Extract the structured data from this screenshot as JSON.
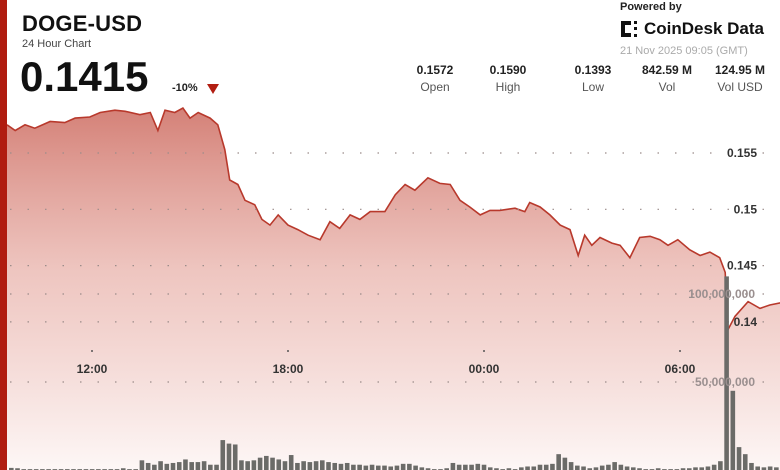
{
  "header": {
    "symbol": "DOGE-USD",
    "subtitle": "24 Hour Chart",
    "price": "0.1415",
    "change": "-10%",
    "change_direction_icon": "triangle-down-icon",
    "powered_by": "Powered by",
    "brand": "CoinDesk Data",
    "timestamp": "21 Nov 2025 09:05 (GMT)"
  },
  "stats": [
    {
      "value": "0.1572",
      "label": "Open"
    },
    {
      "value": "0.1590",
      "label": "High"
    },
    {
      "value": "0.1393",
      "label": "Low"
    },
    {
      "value": "842.59 M",
      "label": "Vol"
    },
    {
      "value": "124.95 M",
      "label": "Vol USD"
    }
  ],
  "colors": {
    "accent": "#b01c10",
    "line": "#b8392c",
    "volume": "#6b6b68",
    "fill_top": "#d98a80"
  },
  "chart_data": [
    {
      "type": "area",
      "series": [
        {
          "values_format": "time,price"
        }
      ],
      "x_ticks": [
        "12:00",
        "18:00",
        "00:00",
        "06:00"
      ],
      "y_ticks": [
        "0.155",
        "0.15",
        "0.145",
        "0.14"
      ],
      "y_tick_values": [
        0.155,
        0.15,
        0.145,
        0.14
      ],
      "ylim": [
        0.1335,
        0.1605
      ],
      "grid": true,
      "points": [
        [
          "09:26",
          0.1575
        ],
        [
          "09:39",
          0.157
        ],
        [
          "09:57",
          0.1575
        ],
        [
          "10:15",
          0.1572
        ],
        [
          "10:43",
          0.1578
        ],
        [
          "11:10",
          0.1577
        ],
        [
          "11:29",
          0.1581
        ],
        [
          "11:56",
          0.1582
        ],
        [
          "12:15",
          0.1586
        ],
        [
          "12:42",
          0.1588
        ],
        [
          "13:01",
          0.1587
        ],
        [
          "13:28",
          0.1584
        ],
        [
          "13:47",
          0.1586
        ],
        [
          "14:01",
          0.157
        ],
        [
          "14:14",
          0.1588
        ],
        [
          "14:32",
          0.1586
        ],
        [
          "14:47",
          0.159
        ],
        [
          "15:00",
          0.1581
        ],
        [
          "15:15",
          0.1586
        ],
        [
          "15:37",
          0.1581
        ],
        [
          "15:51",
          0.1575
        ],
        [
          "16:04",
          0.1553
        ],
        [
          "16:13",
          0.1526
        ],
        [
          "16:28",
          0.1522
        ],
        [
          "16:41",
          0.1508
        ],
        [
          "16:59",
          0.1504
        ],
        [
          "17:12",
          0.1491
        ],
        [
          "17:27",
          0.1486
        ],
        [
          "17:42",
          0.1495
        ],
        [
          "18:00",
          0.1486
        ],
        [
          "18:18",
          0.1482
        ],
        [
          "18:37",
          0.1477
        ],
        [
          "18:59",
          0.1473
        ],
        [
          "19:17",
          0.1489
        ],
        [
          "19:35",
          0.1483
        ],
        [
          "19:54",
          0.1495
        ],
        [
          "20:12",
          0.1491
        ],
        [
          "20:31",
          0.1498
        ],
        [
          "20:58",
          0.1498
        ],
        [
          "21:17",
          0.1513
        ],
        [
          "21:35",
          0.1522
        ],
        [
          "21:53",
          0.1517
        ],
        [
          "22:17",
          0.1528
        ],
        [
          "22:39",
          0.1523
        ],
        [
          "22:58",
          0.1522
        ],
        [
          "23:16",
          0.1508
        ],
        [
          "23:34",
          0.1502
        ],
        [
          "23:53",
          0.1495
        ],
        [
          "00:11",
          0.1499
        ],
        [
          "00:29",
          0.1499
        ],
        [
          "00:57",
          0.1501
        ],
        [
          "01:15",
          0.1498
        ],
        [
          "01:24",
          0.1506
        ],
        [
          "01:43",
          0.1502
        ],
        [
          "02:01",
          0.1495
        ],
        [
          "02:20",
          0.1486
        ],
        [
          "02:38",
          0.1482
        ],
        [
          "02:53",
          0.1459
        ],
        [
          "03:05",
          0.1477
        ],
        [
          "03:18",
          0.1468
        ],
        [
          "03:33",
          0.1475
        ],
        [
          "03:55",
          0.147
        ],
        [
          "04:10",
          0.1468
        ],
        [
          "04:28",
          0.1457
        ],
        [
          "04:46",
          0.1475
        ],
        [
          "05:05",
          0.1476
        ],
        [
          "05:23",
          0.1473
        ],
        [
          "05:38",
          0.1468
        ],
        [
          "05:56",
          0.1473
        ],
        [
          "06:18",
          0.1464
        ],
        [
          "06:37",
          0.1459
        ],
        [
          "06:55",
          0.1462
        ],
        [
          "07:13",
          0.1457
        ],
        [
          "07:23",
          0.1444
        ],
        [
          "07:28",
          0.1393
        ],
        [
          "07:41",
          0.1405
        ],
        [
          "08:05",
          0.1418
        ],
        [
          "08:27",
          0.1412
        ],
        [
          "08:45",
          0.1415
        ],
        [
          "09:05",
          0.1417
        ]
      ]
    },
    {
      "type": "bar",
      "unit": "volume",
      "y_ticks": [
        "100,000,000",
        "50,000,000"
      ],
      "y_tick_values": [
        100000000,
        50000000
      ],
      "values_millions": [
        1.2,
        1,
        0.5,
        0.5,
        0.5,
        0.5,
        0.5,
        0.5,
        0.5,
        0.5,
        0.5,
        0.5,
        0.5,
        0.5,
        0.5,
        0.5,
        0.5,
        0.5,
        1,
        0.5,
        0.5,
        5.5,
        4,
        3,
        5,
        3.5,
        4,
        4.5,
        6,
        4.5,
        4.5,
        5,
        3,
        3,
        17,
        15,
        14.5,
        5.5,
        5,
        5.5,
        7,
        8,
        7,
        6,
        5,
        8.5,
        4,
        5,
        4.5,
        5,
        5.5,
        4.5,
        4,
        3.5,
        4,
        3,
        3,
        2.5,
        3,
        2.5,
        2.5,
        2,
        2.5,
        3.5,
        3.5,
        2.5,
        1.5,
        1,
        0.5,
        0.5,
        1,
        4,
        3,
        3,
        3,
        3.5,
        3,
        1.5,
        1,
        0.5,
        1,
        0.5,
        1.5,
        2,
        2,
        3,
        3,
        3.5,
        9,
        7,
        4.5,
        2.5,
        2,
        1,
        1.5,
        2.5,
        3,
        4.5,
        3,
        2,
        1.5,
        1,
        0.5,
        0.5,
        1,
        0.5,
        0.5,
        0.5,
        1,
        1,
        1.5,
        1.5,
        2,
        3,
        5,
        110,
        45,
        13,
        9,
        4,
        2,
        1.5,
        2,
        1.5
      ]
    }
  ]
}
